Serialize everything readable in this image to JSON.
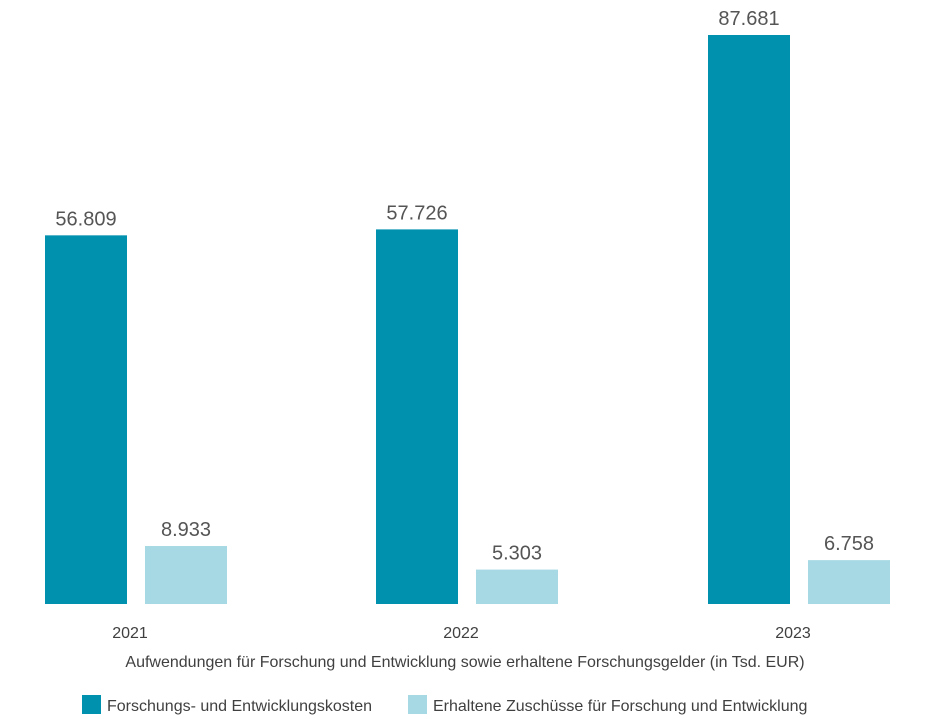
{
  "chart_data": {
    "type": "bar",
    "categories": [
      "2021",
      "2022",
      "2023"
    ],
    "series": [
      {
        "name": "Forschungs- und Entwicklungskosten",
        "values": [
          56809,
          57726,
          87681
        ],
        "labels": [
          "56.809",
          "57.726",
          "87.681"
        ],
        "color": "#0091AE"
      },
      {
        "name": "Erhaltene Zuschüsse für Forschung und Entwicklung",
        "values": [
          8933,
          5303,
          6758
        ],
        "labels": [
          "8.933",
          "5.303",
          "6.758"
        ],
        "color": "#A6D9E3"
      }
    ],
    "xlabel": "Aufwendungen für Forschung und Entwicklung sowie erhaltene Forschungsgelder (in Tsd. EUR)",
    "ylabel": "",
    "ylim": [
      0,
      87681
    ],
    "grid": false,
    "legend_position": "bottom-center",
    "y_axis_visible": false
  }
}
